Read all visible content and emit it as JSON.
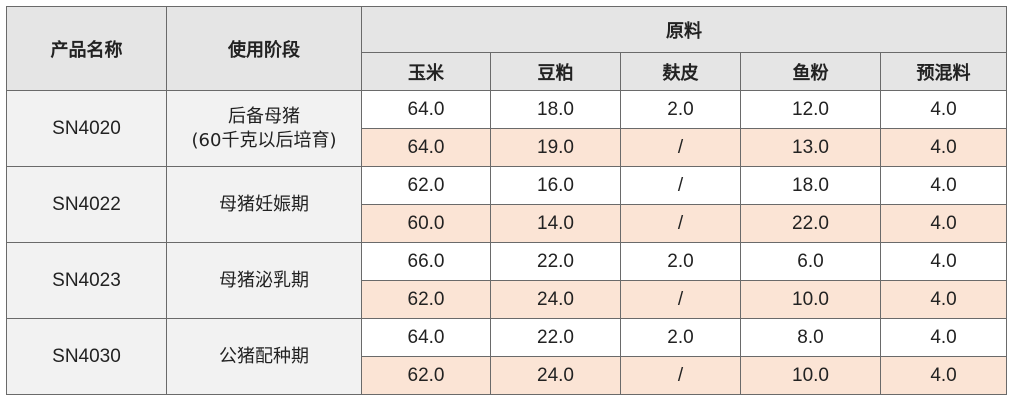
{
  "headers": {
    "product": "产品名称",
    "stage": "使用阶段",
    "ingredients": "原料",
    "columns": [
      "玉米",
      "豆粕",
      "麸皮",
      "鱼粉",
      "预混料"
    ]
  },
  "rows": [
    {
      "product": "SN4020",
      "stage": [
        "后备母猪",
        "(60千克以后培育)"
      ],
      "values": [
        [
          "64.0",
          "18.0",
          "2.0",
          "12.0",
          "4.0"
        ],
        [
          "64.0",
          "19.0",
          "/",
          "13.0",
          "4.0"
        ]
      ]
    },
    {
      "product": "SN4022",
      "stage": [
        "母猪妊娠期"
      ],
      "values": [
        [
          "62.0",
          "16.0",
          "/",
          "18.0",
          "4.0"
        ],
        [
          "60.0",
          "14.0",
          "/",
          "22.0",
          "4.0"
        ]
      ]
    },
    {
      "product": "SN4023",
      "stage": [
        "母猪泌乳期"
      ],
      "values": [
        [
          "66.0",
          "22.0",
          "2.0",
          "6.0",
          "4.0"
        ],
        [
          "62.0",
          "24.0",
          "/",
          "10.0",
          "4.0"
        ]
      ]
    },
    {
      "product": "SN4030",
      "stage": [
        "公猪配种期"
      ],
      "values": [
        [
          "64.0",
          "22.0",
          "2.0",
          "8.0",
          "4.0"
        ],
        [
          "62.0",
          "24.0",
          "/",
          "10.0",
          "4.0"
        ]
      ]
    }
  ],
  "colors": {
    "header_bg": "#e5e5e5",
    "label_bg": "#f2f2f2",
    "alt_row_bg": "#fbe4d5"
  }
}
